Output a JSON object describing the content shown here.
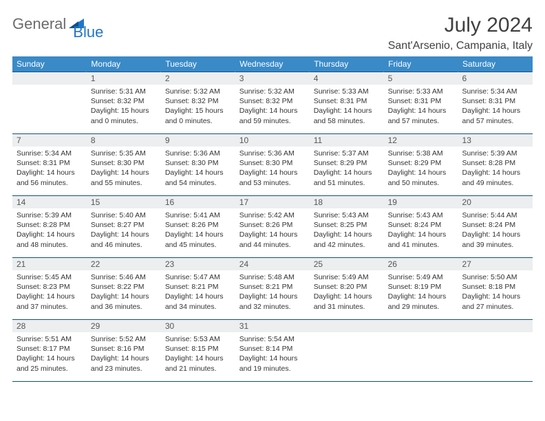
{
  "logo": {
    "word1": "General",
    "word2": "Blue"
  },
  "title": "July 2024",
  "location": "Sant'Arsenio, Campania, Italy",
  "colors": {
    "header_bg": "#3a8ac7",
    "header_text": "#ffffff",
    "border": "#0d4f8b",
    "daynum_bg": "#eceeef",
    "logo_grey": "#6b6b6b",
    "logo_blue": "#2176c7"
  },
  "weekdays": [
    "Sunday",
    "Monday",
    "Tuesday",
    "Wednesday",
    "Thursday",
    "Friday",
    "Saturday"
  ],
  "weeks": [
    [
      null,
      {
        "n": "1",
        "sr": "Sunrise: 5:31 AM",
        "ss": "Sunset: 8:32 PM",
        "dl": "Daylight: 15 hours and 0 minutes."
      },
      {
        "n": "2",
        "sr": "Sunrise: 5:32 AM",
        "ss": "Sunset: 8:32 PM",
        "dl": "Daylight: 15 hours and 0 minutes."
      },
      {
        "n": "3",
        "sr": "Sunrise: 5:32 AM",
        "ss": "Sunset: 8:32 PM",
        "dl": "Daylight: 14 hours and 59 minutes."
      },
      {
        "n": "4",
        "sr": "Sunrise: 5:33 AM",
        "ss": "Sunset: 8:31 PM",
        "dl": "Daylight: 14 hours and 58 minutes."
      },
      {
        "n": "5",
        "sr": "Sunrise: 5:33 AM",
        "ss": "Sunset: 8:31 PM",
        "dl": "Daylight: 14 hours and 57 minutes."
      },
      {
        "n": "6",
        "sr": "Sunrise: 5:34 AM",
        "ss": "Sunset: 8:31 PM",
        "dl": "Daylight: 14 hours and 57 minutes."
      }
    ],
    [
      {
        "n": "7",
        "sr": "Sunrise: 5:34 AM",
        "ss": "Sunset: 8:31 PM",
        "dl": "Daylight: 14 hours and 56 minutes."
      },
      {
        "n": "8",
        "sr": "Sunrise: 5:35 AM",
        "ss": "Sunset: 8:30 PM",
        "dl": "Daylight: 14 hours and 55 minutes."
      },
      {
        "n": "9",
        "sr": "Sunrise: 5:36 AM",
        "ss": "Sunset: 8:30 PM",
        "dl": "Daylight: 14 hours and 54 minutes."
      },
      {
        "n": "10",
        "sr": "Sunrise: 5:36 AM",
        "ss": "Sunset: 8:30 PM",
        "dl": "Daylight: 14 hours and 53 minutes."
      },
      {
        "n": "11",
        "sr": "Sunrise: 5:37 AM",
        "ss": "Sunset: 8:29 PM",
        "dl": "Daylight: 14 hours and 51 minutes."
      },
      {
        "n": "12",
        "sr": "Sunrise: 5:38 AM",
        "ss": "Sunset: 8:29 PM",
        "dl": "Daylight: 14 hours and 50 minutes."
      },
      {
        "n": "13",
        "sr": "Sunrise: 5:39 AM",
        "ss": "Sunset: 8:28 PM",
        "dl": "Daylight: 14 hours and 49 minutes."
      }
    ],
    [
      {
        "n": "14",
        "sr": "Sunrise: 5:39 AM",
        "ss": "Sunset: 8:28 PM",
        "dl": "Daylight: 14 hours and 48 minutes."
      },
      {
        "n": "15",
        "sr": "Sunrise: 5:40 AM",
        "ss": "Sunset: 8:27 PM",
        "dl": "Daylight: 14 hours and 46 minutes."
      },
      {
        "n": "16",
        "sr": "Sunrise: 5:41 AM",
        "ss": "Sunset: 8:26 PM",
        "dl": "Daylight: 14 hours and 45 minutes."
      },
      {
        "n": "17",
        "sr": "Sunrise: 5:42 AM",
        "ss": "Sunset: 8:26 PM",
        "dl": "Daylight: 14 hours and 44 minutes."
      },
      {
        "n": "18",
        "sr": "Sunrise: 5:43 AM",
        "ss": "Sunset: 8:25 PM",
        "dl": "Daylight: 14 hours and 42 minutes."
      },
      {
        "n": "19",
        "sr": "Sunrise: 5:43 AM",
        "ss": "Sunset: 8:24 PM",
        "dl": "Daylight: 14 hours and 41 minutes."
      },
      {
        "n": "20",
        "sr": "Sunrise: 5:44 AM",
        "ss": "Sunset: 8:24 PM",
        "dl": "Daylight: 14 hours and 39 minutes."
      }
    ],
    [
      {
        "n": "21",
        "sr": "Sunrise: 5:45 AM",
        "ss": "Sunset: 8:23 PM",
        "dl": "Daylight: 14 hours and 37 minutes."
      },
      {
        "n": "22",
        "sr": "Sunrise: 5:46 AM",
        "ss": "Sunset: 8:22 PM",
        "dl": "Daylight: 14 hours and 36 minutes."
      },
      {
        "n": "23",
        "sr": "Sunrise: 5:47 AM",
        "ss": "Sunset: 8:21 PM",
        "dl": "Daylight: 14 hours and 34 minutes."
      },
      {
        "n": "24",
        "sr": "Sunrise: 5:48 AM",
        "ss": "Sunset: 8:21 PM",
        "dl": "Daylight: 14 hours and 32 minutes."
      },
      {
        "n": "25",
        "sr": "Sunrise: 5:49 AM",
        "ss": "Sunset: 8:20 PM",
        "dl": "Daylight: 14 hours and 31 minutes."
      },
      {
        "n": "26",
        "sr": "Sunrise: 5:49 AM",
        "ss": "Sunset: 8:19 PM",
        "dl": "Daylight: 14 hours and 29 minutes."
      },
      {
        "n": "27",
        "sr": "Sunrise: 5:50 AM",
        "ss": "Sunset: 8:18 PM",
        "dl": "Daylight: 14 hours and 27 minutes."
      }
    ],
    [
      {
        "n": "28",
        "sr": "Sunrise: 5:51 AM",
        "ss": "Sunset: 8:17 PM",
        "dl": "Daylight: 14 hours and 25 minutes."
      },
      {
        "n": "29",
        "sr": "Sunrise: 5:52 AM",
        "ss": "Sunset: 8:16 PM",
        "dl": "Daylight: 14 hours and 23 minutes."
      },
      {
        "n": "30",
        "sr": "Sunrise: 5:53 AM",
        "ss": "Sunset: 8:15 PM",
        "dl": "Daylight: 14 hours and 21 minutes."
      },
      {
        "n": "31",
        "sr": "Sunrise: 5:54 AM",
        "ss": "Sunset: 8:14 PM",
        "dl": "Daylight: 14 hours and 19 minutes."
      },
      null,
      null,
      null
    ]
  ]
}
